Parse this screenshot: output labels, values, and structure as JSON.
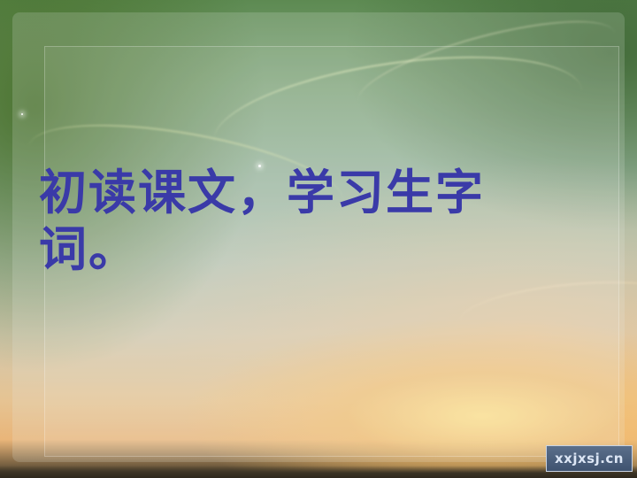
{
  "slide": {
    "title": "初读课文，学习生字词。",
    "watermark": "xxjxsj.cn"
  },
  "colors": {
    "title_text": "#3a3aa8",
    "sky_top": "#5d8a52",
    "sky_bottom": "#e9b579"
  }
}
